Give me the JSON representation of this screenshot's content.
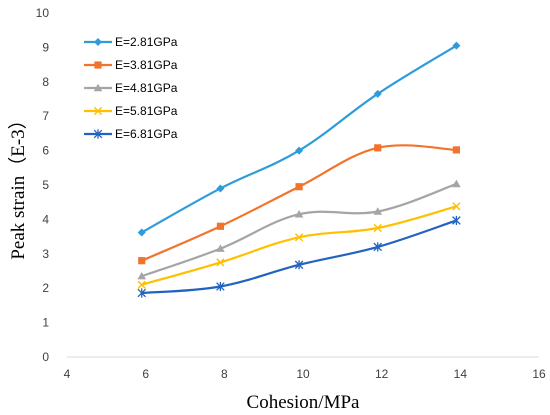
{
  "chart_data": {
    "type": "line",
    "title": "",
    "xlabel": "Cohesion/MPa",
    "ylabel": "Peak strain（E-3）",
    "xlim": [
      4,
      16
    ],
    "ylim": [
      0,
      10
    ],
    "x_ticks": [
      "4",
      "6",
      "8",
      "10",
      "12",
      "14",
      "16"
    ],
    "y_ticks": [
      "0",
      "1",
      "2",
      "3",
      "4",
      "5",
      "6",
      "7",
      "8",
      "9",
      "10"
    ],
    "grid": false,
    "smooth": true,
    "legend_position": "top-left",
    "x": [
      5.9,
      7.9,
      9.9,
      11.9,
      13.9
    ],
    "series": [
      {
        "name": "E=2.81GPa",
        "color": "#2E9CDB",
        "marker": "diamond",
        "values": [
          3.62,
          4.9,
          6.0,
          7.65,
          9.05
        ]
      },
      {
        "name": "E=3.81GPa",
        "color": "#F2742C",
        "marker": "square",
        "values": [
          2.8,
          3.8,
          4.95,
          6.08,
          6.02
        ]
      },
      {
        "name": "E=4.81GPa",
        "color": "#A5A5A5",
        "marker": "triangle",
        "values": [
          2.35,
          3.15,
          4.15,
          4.23,
          5.03
        ]
      },
      {
        "name": "E=5.81GPa",
        "color": "#FFC000",
        "marker": "x",
        "values": [
          2.1,
          2.75,
          3.48,
          3.75,
          4.38
        ]
      },
      {
        "name": "E=6.81GPa",
        "color": "#2363C0",
        "marker": "star",
        "values": [
          1.86,
          2.05,
          2.68,
          3.2,
          3.97
        ]
      }
    ]
  }
}
